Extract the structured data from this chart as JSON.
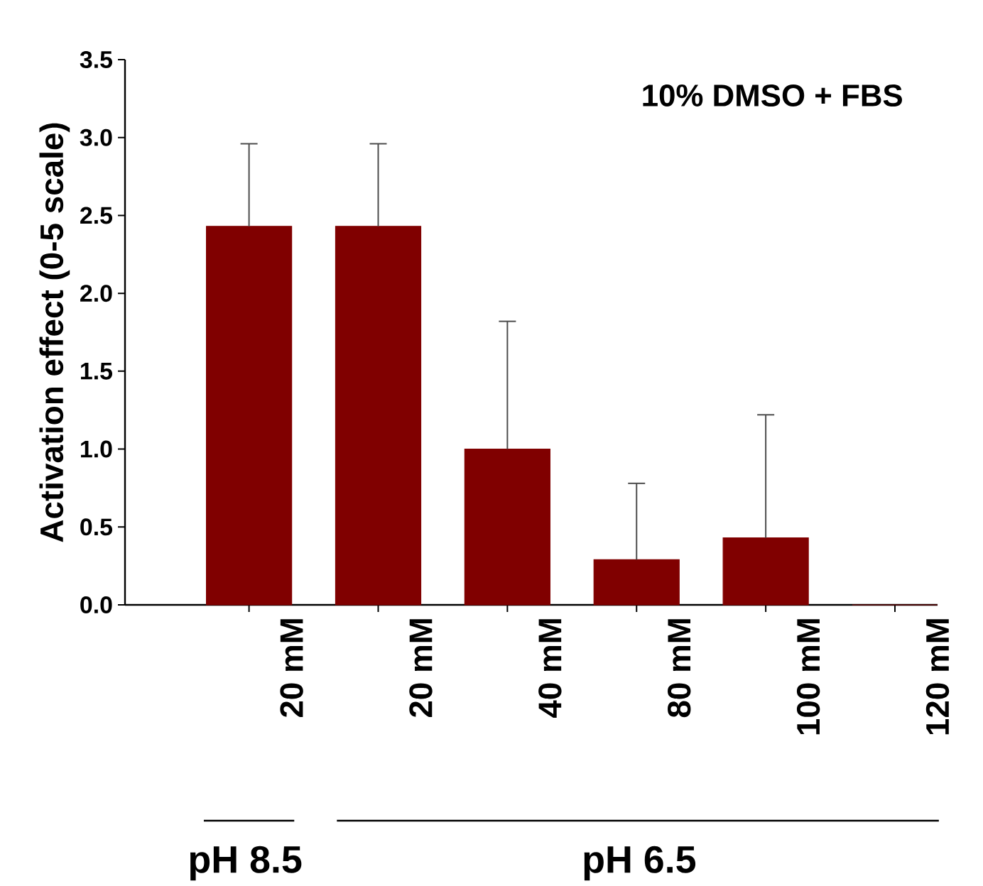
{
  "chart_data": {
    "type": "bar",
    "ylabel": "Activation effect (0-5 scale)",
    "categories": [
      "20 mM",
      "20 mM",
      "40 mM",
      "80 mM",
      "100 mM",
      "120 mM"
    ],
    "values": [
      2.43,
      2.43,
      1.0,
      0.29,
      0.43,
      0
    ],
    "errors": [
      [
        2.43,
        2.96
      ],
      [
        2.43,
        2.96
      ],
      [
        1.0,
        1.82
      ],
      [
        0.29,
        0.78
      ],
      [
        0.43,
        1.22
      ],
      null
    ],
    "color": "#800000",
    "ylim": [
      0,
      3.5
    ],
    "yticks": [
      {
        "value": 0,
        "label": "0.0"
      },
      {
        "value": 0.5,
        "label": "0.5"
      },
      {
        "value": 1,
        "label": "1.0"
      },
      {
        "value": 1.5,
        "label": "1.5"
      },
      {
        "value": 2,
        "label": "2.0"
      },
      {
        "value": 2.5,
        "label": "2.5"
      },
      {
        "value": 3,
        "label": "3.0"
      },
      {
        "value": 3.5,
        "label": "3.5"
      }
    ],
    "annotations": [
      "10% DMSO + FBS",
      "pH 8.5",
      "pH  6.5"
    ]
  }
}
